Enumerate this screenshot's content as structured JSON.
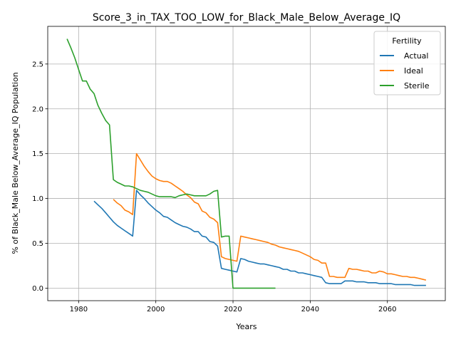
{
  "chart_data": {
    "type": "line",
    "title": "Score_3_in_TAX_TOO_LOW_for_Black_Male_Below_Average_IQ",
    "xlabel": "Years",
    "ylabel": "% of Black_Male Below_Average_IQ Population",
    "xlim": [
      1972,
      2075
    ],
    "ylim": [
      -0.14,
      2.92
    ],
    "xticks": [
      1980,
      2000,
      2020,
      2040,
      2060
    ],
    "yticks": [
      0.0,
      0.5,
      1.0,
      1.5,
      2.0,
      2.5
    ],
    "xtick_labels": [
      "1980",
      "2000",
      "2020",
      "2040",
      "2060"
    ],
    "ytick_labels": [
      "0.0",
      "0.5",
      "1.0",
      "1.5",
      "2.0",
      "2.5"
    ],
    "grid": true,
    "legend": {
      "title": "Fertility",
      "position": "top-right"
    },
    "series": [
      {
        "name": "Actual",
        "color": "#1f77b4",
        "x": [
          1984,
          1985,
          1986,
          1987,
          1988,
          1989,
          1990,
          1991,
          1992,
          1993,
          1994,
          1995,
          1996,
          1997,
          1998,
          1999,
          2000,
          2001,
          2002,
          2003,
          2004,
          2005,
          2006,
          2007,
          2008,
          2009,
          2010,
          2011,
          2012,
          2013,
          2014,
          2015,
          2016,
          2017,
          2018,
          2019,
          2020,
          2021,
          2022,
          2023,
          2024,
          2025,
          2026,
          2027,
          2028,
          2029,
          2030,
          2031,
          2032,
          2033,
          2034,
          2035,
          2036,
          2037,
          2038,
          2039,
          2040,
          2041,
          2042,
          2043,
          2044,
          2045,
          2046,
          2047,
          2048,
          2049,
          2050,
          2051,
          2052,
          2053,
          2054,
          2055,
          2056,
          2057,
          2058,
          2059,
          2060,
          2061,
          2062,
          2063,
          2064,
          2065,
          2066,
          2067,
          2068,
          2069,
          2070
        ],
        "values": [
          0.97,
          0.93,
          0.89,
          0.84,
          0.79,
          0.74,
          0.7,
          0.67,
          0.64,
          0.61,
          0.58,
          1.09,
          1.04,
          1.0,
          0.95,
          0.91,
          0.87,
          0.84,
          0.8,
          0.79,
          0.76,
          0.73,
          0.71,
          0.69,
          0.68,
          0.66,
          0.63,
          0.63,
          0.58,
          0.57,
          0.52,
          0.51,
          0.47,
          0.22,
          0.21,
          0.2,
          0.19,
          0.18,
          0.33,
          0.32,
          0.3,
          0.29,
          0.28,
          0.27,
          0.27,
          0.26,
          0.25,
          0.24,
          0.23,
          0.21,
          0.21,
          0.19,
          0.19,
          0.17,
          0.17,
          0.16,
          0.15,
          0.14,
          0.13,
          0.12,
          0.06,
          0.05,
          0.05,
          0.05,
          0.05,
          0.08,
          0.08,
          0.08,
          0.07,
          0.07,
          0.07,
          0.06,
          0.06,
          0.06,
          0.05,
          0.05,
          0.05,
          0.05,
          0.04,
          0.04,
          0.04,
          0.04,
          0.04,
          0.03,
          0.03,
          0.03,
          0.03
        ]
      },
      {
        "name": "Ideal",
        "color": "#ff7f0e",
        "x": [
          1989,
          1990,
          1991,
          1992,
          1993,
          1994,
          1995,
          1996,
          1997,
          1998,
          1999,
          2000,
          2001,
          2002,
          2003,
          2004,
          2005,
          2006,
          2007,
          2008,
          2009,
          2010,
          2011,
          2012,
          2013,
          2014,
          2015,
          2016,
          2017,
          2018,
          2019,
          2020,
          2021,
          2022,
          2023,
          2024,
          2025,
          2026,
          2027,
          2028,
          2029,
          2030,
          2031,
          2032,
          2033,
          2034,
          2035,
          2036,
          2037,
          2038,
          2039,
          2040,
          2041,
          2042,
          2043,
          2044,
          2045,
          2046,
          2047,
          2048,
          2049,
          2050,
          2051,
          2052,
          2053,
          2054,
          2055,
          2056,
          2057,
          2058,
          2059,
          2060,
          2061,
          2062,
          2063,
          2064,
          2065,
          2066,
          2067,
          2068,
          2069,
          2070
        ],
        "values": [
          0.99,
          0.95,
          0.92,
          0.87,
          0.85,
          0.82,
          1.5,
          1.43,
          1.36,
          1.3,
          1.25,
          1.22,
          1.2,
          1.19,
          1.19,
          1.17,
          1.14,
          1.11,
          1.08,
          1.04,
          1.01,
          0.96,
          0.94,
          0.86,
          0.84,
          0.79,
          0.77,
          0.73,
          0.35,
          0.33,
          0.32,
          0.31,
          0.3,
          0.58,
          0.57,
          0.56,
          0.55,
          0.54,
          0.53,
          0.52,
          0.51,
          0.49,
          0.48,
          0.46,
          0.45,
          0.44,
          0.43,
          0.42,
          0.41,
          0.39,
          0.37,
          0.35,
          0.32,
          0.31,
          0.28,
          0.28,
          0.13,
          0.13,
          0.12,
          0.12,
          0.12,
          0.22,
          0.21,
          0.21,
          0.2,
          0.19,
          0.19,
          0.17,
          0.17,
          0.19,
          0.18,
          0.16,
          0.16,
          0.15,
          0.14,
          0.13,
          0.13,
          0.12,
          0.12,
          0.11,
          0.1,
          0.09
        ]
      },
      {
        "name": "Sterile",
        "color": "#2ca02c",
        "x": [
          1977,
          1978,
          1979,
          1980,
          1981,
          1982,
          1983,
          1984,
          1985,
          1986,
          1987,
          1988,
          1989,
          1990,
          1991,
          1992,
          1993,
          1994,
          1995,
          1996,
          1997,
          1998,
          1999,
          2000,
          2001,
          2002,
          2003,
          2004,
          2005,
          2006,
          2007,
          2008,
          2009,
          2010,
          2011,
          2012,
          2013,
          2014,
          2015,
          2016,
          2017,
          2018,
          2019,
          2020,
          2021,
          2022,
          2023,
          2024,
          2025,
          2026,
          2027,
          2028,
          2029,
          2030,
          2031
        ],
        "values": [
          2.78,
          2.68,
          2.57,
          2.44,
          2.31,
          2.31,
          2.22,
          2.17,
          2.04,
          1.95,
          1.87,
          1.82,
          1.21,
          1.18,
          1.16,
          1.14,
          1.14,
          1.13,
          1.11,
          1.09,
          1.08,
          1.07,
          1.05,
          1.03,
          1.02,
          1.02,
          1.02,
          1.02,
          1.01,
          1.03,
          1.04,
          1.05,
          1.04,
          1.03,
          1.03,
          1.03,
          1.03,
          1.05,
          1.08,
          1.09,
          0.57,
          0.58,
          0.58,
          0.0,
          0.0,
          0.0,
          0.0,
          0.0,
          0.0,
          0.0,
          0.0,
          0.0,
          0.0,
          0.0,
          0.0
        ]
      }
    ]
  }
}
